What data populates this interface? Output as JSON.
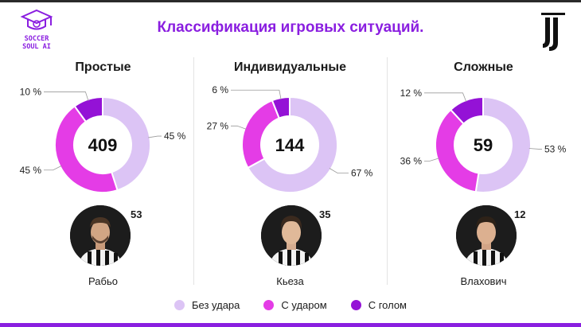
{
  "header": {
    "title": "Классификация игровых ситуаций.",
    "logo_text": [
      "SOCCER",
      "SOUL AI"
    ],
    "club_logo_icon": "juventus-logo"
  },
  "colors": {
    "no_shot": "#dcc4f5",
    "shot": "#e43ce6",
    "goal": "#9412d6",
    "accent": "#8a1ee0"
  },
  "chart_data": [
    {
      "type": "pie",
      "title": "Простые",
      "total": 409,
      "series": [
        {
          "name": "Без удара",
          "value": 45,
          "label": "45 %"
        },
        {
          "name": "С ударом",
          "value": 45,
          "label": "45 %"
        },
        {
          "name": "С голом",
          "value": 10,
          "label": "10 %"
        }
      ]
    },
    {
      "type": "pie",
      "title": "Индивидуальные",
      "total": 144,
      "series": [
        {
          "name": "Без удара",
          "value": 67,
          "label": "67 %"
        },
        {
          "name": "С ударом",
          "value": 27,
          "label": "27 %"
        },
        {
          "name": "С голом",
          "value": 6,
          "label": "6 %"
        }
      ]
    },
    {
      "type": "pie",
      "title": "Сложные",
      "total": 59,
      "series": [
        {
          "name": "Без удара",
          "value": 53,
          "label": "53 %"
        },
        {
          "name": "С ударом",
          "value": 36,
          "label": "36 %"
        },
        {
          "name": "С голом",
          "value": 12,
          "label": "12 %"
        }
      ]
    }
  ],
  "players": [
    {
      "name": "Рабьо",
      "count": "53"
    },
    {
      "name": "Кьеза",
      "count": "35"
    },
    {
      "name": "Влахович",
      "count": "12"
    }
  ],
  "legend": [
    {
      "label": "Без удара",
      "color_key": "no_shot"
    },
    {
      "label": "С ударом",
      "color_key": "shot"
    },
    {
      "label": "С голом",
      "color_key": "goal"
    }
  ]
}
